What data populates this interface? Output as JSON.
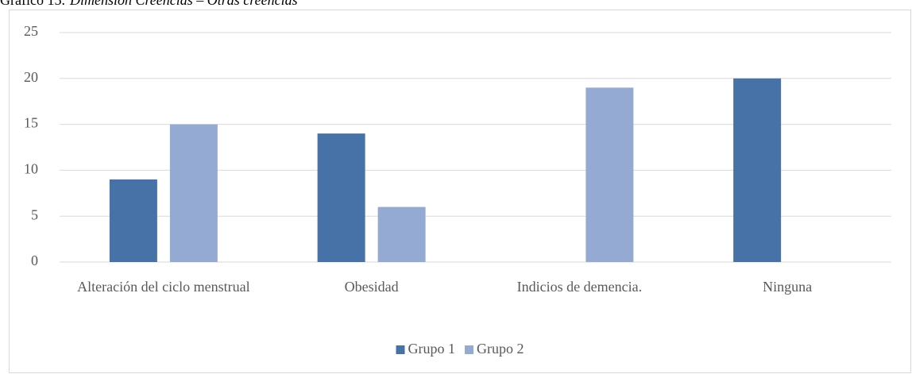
{
  "chart_data": {
    "type": "bar",
    "title": "Gráfico 15.",
    "subtitle": "Dimensión Creencias – Otras creencias",
    "categories": [
      "Alteración del ciclo menstrual",
      "Obesidad",
      "Indicios de demencia.",
      "Ninguna"
    ],
    "series": [
      {
        "name": "Grupo 1",
        "color": "#4672a8",
        "values": [
          9,
          14,
          0,
          20
        ]
      },
      {
        "name": "Grupo 2",
        "color": "#95aad3",
        "values": [
          15,
          6,
          19,
          0
        ]
      }
    ],
    "ylim": [
      0,
      25
    ],
    "yticks": [
      0,
      5,
      10,
      15,
      20,
      25
    ],
    "grid": true,
    "legend": "bottom"
  }
}
